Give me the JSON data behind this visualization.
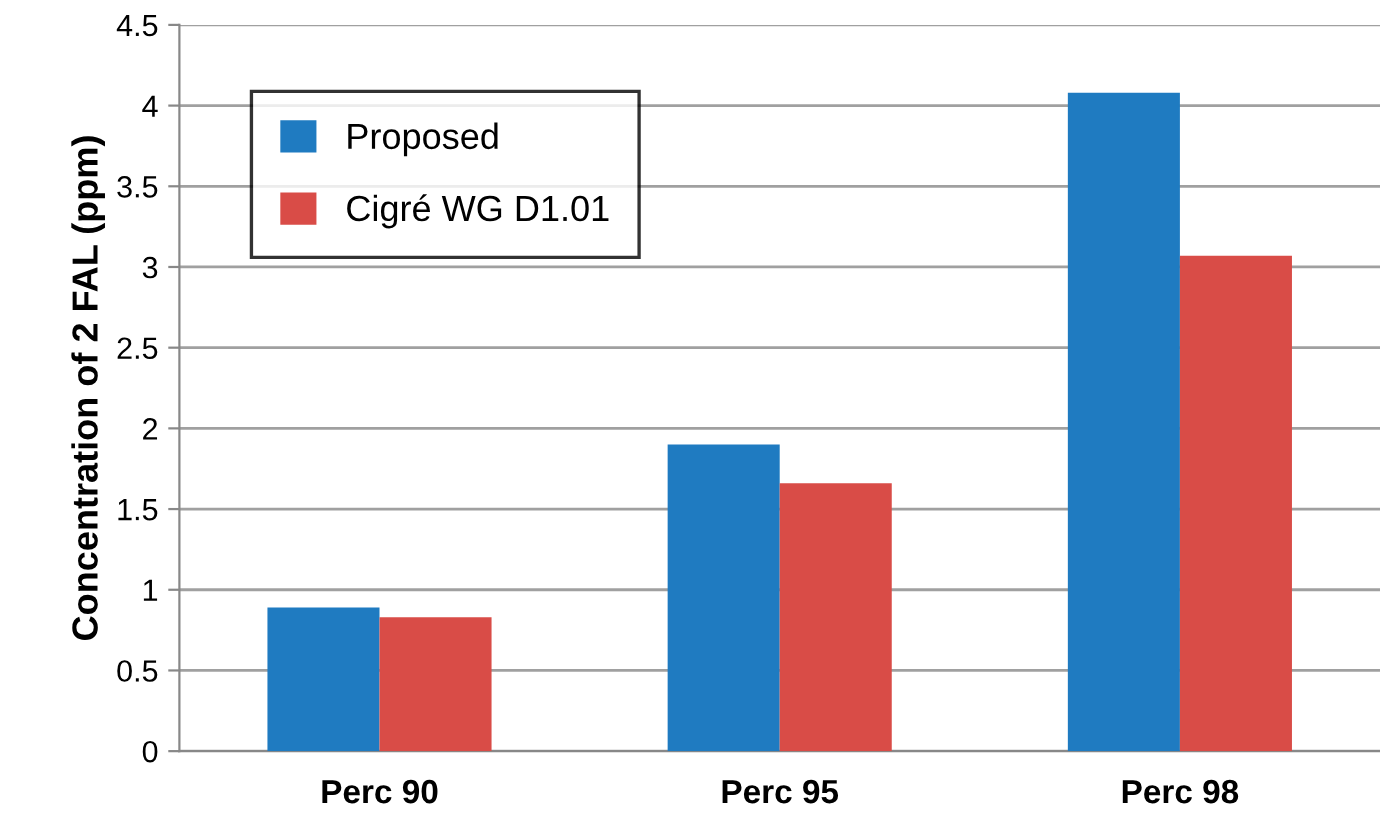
{
  "chart_data": {
    "type": "bar",
    "ylabel": "Concentration of 2 FAL (ppm)",
    "categories": [
      "Perc 90",
      "Perc 95",
      "Perc 98"
    ],
    "series": [
      {
        "name": "Proposed",
        "color": "#1f7bc1",
        "values": [
          0.89,
          1.9,
          4.08
        ]
      },
      {
        "name": "Cigré WG D1.01",
        "color": "#d94c47",
        "values": [
          0.83,
          1.66,
          3.07
        ]
      }
    ],
    "ylim": [
      0,
      4.5
    ],
    "yticks": [
      0,
      0.5,
      1,
      1.5,
      2,
      2.5,
      3,
      3.5,
      4,
      4.5
    ],
    "grid": "y",
    "legend": "top left"
  }
}
